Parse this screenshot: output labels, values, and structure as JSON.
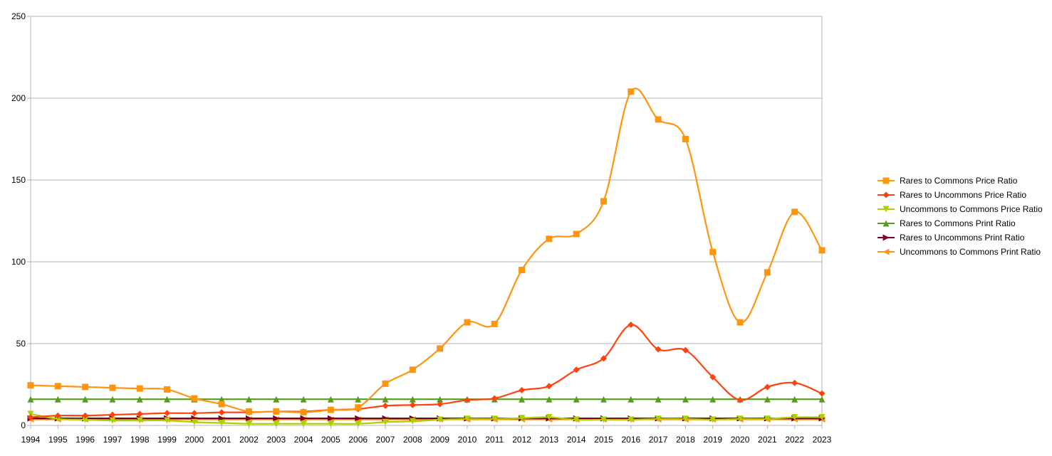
{
  "chart_data": {
    "type": "line",
    "title": "",
    "xlabel": "",
    "ylabel": "",
    "ylim": [
      0,
      250
    ],
    "yticks": [
      0,
      50,
      100,
      150,
      200,
      250
    ],
    "grid": "horizontal",
    "legend_position": "right",
    "categories": [
      "1994",
      "1995",
      "1996",
      "1997",
      "1998",
      "1999",
      "2000",
      "2001",
      "2002",
      "2003",
      "2004",
      "2005",
      "2006",
      "2007",
      "2008",
      "2009",
      "2010",
      "2011",
      "2012",
      "2013",
      "2014",
      "2015",
      "2016",
      "2017",
      "2018",
      "2019",
      "2020",
      "2021",
      "2022",
      "2023"
    ],
    "series": [
      {
        "name": "Rares to Commons Price Ratio",
        "color": "#ff950e",
        "marker": "square",
        "values": [
          24.5,
          24,
          23.5,
          23,
          22.5,
          22,
          16.5,
          13,
          8.5,
          8.5,
          8,
          9.5,
          11,
          25.5,
          34,
          47,
          63,
          62,
          95,
          114,
          117,
          137,
          204,
          187,
          175,
          106,
          63,
          93.5,
          130.5,
          107
        ]
      },
      {
        "name": "Rares to Uncommons Price Ratio",
        "color": "#ff420e",
        "marker": "diamond",
        "values": [
          5,
          6,
          6,
          6.5,
          7,
          7.5,
          7.5,
          8,
          8,
          8.5,
          8.5,
          9.5,
          10,
          12,
          12.5,
          13,
          15.5,
          16.5,
          21.5,
          24,
          34,
          41,
          61.5,
          46.5,
          46,
          29.5,
          15.5,
          23.5,
          26,
          19.5
        ]
      },
      {
        "name": "Uncommons to Commons Price Ratio",
        "color": "#aecf00",
        "marker": "triangle-down",
        "values": [
          7,
          4,
          3.5,
          3,
          3,
          3,
          2,
          1.5,
          1,
          1,
          1,
          1,
          1,
          2,
          2.5,
          3.5,
          4,
          4,
          4.5,
          5,
          3.5,
          3.5,
          3.5,
          4,
          4,
          3.5,
          4,
          4,
          5,
          5
        ]
      },
      {
        "name": "Rares to Commons Print Ratio",
        "color": "#579d1c",
        "marker": "triangle-up",
        "values": [
          16,
          16,
          16,
          16,
          16,
          16,
          16,
          16,
          16,
          16,
          16,
          16,
          16,
          16,
          16,
          16,
          16,
          16,
          16,
          16,
          16,
          16,
          16,
          16,
          16,
          16,
          16,
          16,
          16,
          16
        ]
      },
      {
        "name": "Rares to Uncommons  Print Ratio",
        "color": "#7e0021",
        "marker": "triangle-right",
        "values": [
          4.3,
          4.3,
          4.3,
          4.3,
          4.3,
          4.3,
          4.3,
          4.3,
          4.3,
          4.3,
          4.3,
          4.3,
          4.3,
          4.3,
          4.3,
          4.3,
          4.3,
          4.3,
          4.3,
          4.3,
          4.3,
          4.3,
          4.3,
          4.3,
          4.3,
          4.3,
          4.3,
          4.3,
          4.3,
          4.3
        ]
      },
      {
        "name": "Uncommons to Commons Print Ratio",
        "color": "#ff950e",
        "marker": "triangle-left",
        "values": [
          3.7,
          3.7,
          3.7,
          3.7,
          3.7,
          3.7,
          3.7,
          3.7,
          3.7,
          3.7,
          3.7,
          3.7,
          3.7,
          3.7,
          3.7,
          3.7,
          3.7,
          3.7,
          3.7,
          3.7,
          3.7,
          3.7,
          3.7,
          3.7,
          3.7,
          3.7,
          3.7,
          3.7,
          3.7,
          3.7
        ]
      }
    ]
  }
}
